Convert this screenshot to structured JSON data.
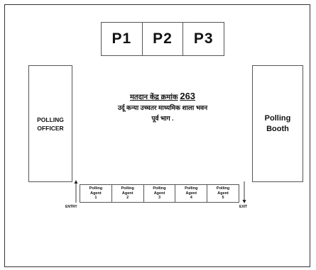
{
  "positions": [
    "P1",
    "P2",
    "P3"
  ],
  "polling_officer": {
    "line1": "POLLING",
    "line2": "OFFICER"
  },
  "polling_booth": {
    "line1": "Polling",
    "line2": "Booth"
  },
  "centre": {
    "label": "मतदान केंद्र क्रमांक",
    "number": "263",
    "line2": "उर्दू कन्या उच्चतर माध्यमिक शाला भवन",
    "line3": "पूर्व भाग ."
  },
  "agents": [
    {
      "line1": "Polling",
      "line2": "Agent",
      "number": "1"
    },
    {
      "line1": "Polling",
      "line2": "Agent",
      "number": "2"
    },
    {
      "line1": "Polling",
      "line2": "Agent",
      "number": "3"
    },
    {
      "line1": "Polling",
      "line2": "Agent",
      "number": "4"
    },
    {
      "line1": "Polling",
      "line2": "Agent",
      "number": "5"
    }
  ],
  "entry_label": "ENTRY",
  "exit_label": "EXIT"
}
